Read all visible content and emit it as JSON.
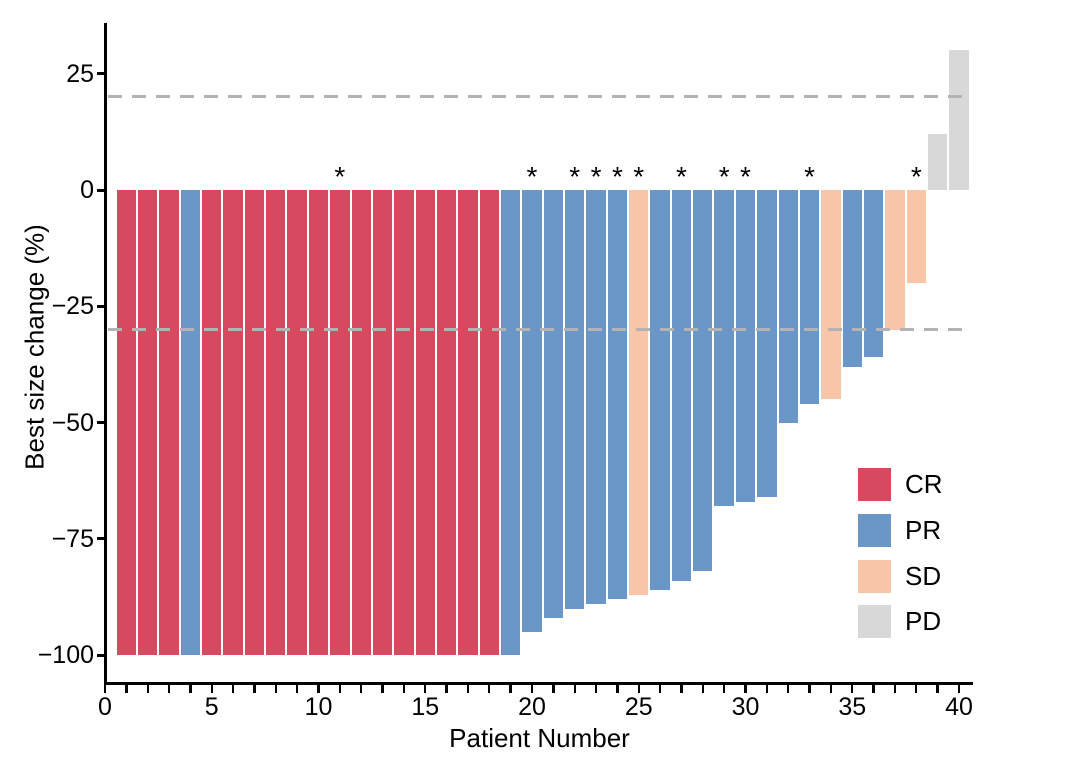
{
  "chart_data": {
    "type": "bar",
    "subtype": "waterfall-best-response",
    "title": "",
    "xlabel": "Patient Number",
    "ylabel": "Best size change (%)",
    "xlim": [
      0,
      40.7
    ],
    "ylim": [
      -107,
      38
    ],
    "grid": false,
    "x_ticks": [
      {
        "value": 0,
        "label": "0"
      },
      {
        "value": 5,
        "label": "5"
      },
      {
        "value": 10,
        "label": "10"
      },
      {
        "value": 15,
        "label": "15"
      },
      {
        "value": 20,
        "label": "20"
      },
      {
        "value": 25,
        "label": "25"
      },
      {
        "value": 30,
        "label": "30"
      },
      {
        "value": 35,
        "label": "35"
      },
      {
        "value": 40,
        "label": "40"
      }
    ],
    "x_minor_tick_interval": 1,
    "y_ticks": [
      {
        "value": 25,
        "label": "25"
      },
      {
        "value": 0,
        "label": "0"
      },
      {
        "value": -25,
        "label": "−25"
      },
      {
        "value": -50,
        "label": "−50"
      },
      {
        "value": -75,
        "label": "−75"
      },
      {
        "value": -100,
        "label": "−100"
      }
    ],
    "reference_lines": [
      {
        "y": 20,
        "style": "dashed",
        "color": "#b3b3b3"
      },
      {
        "y": -30,
        "style": "dashed",
        "color": "#b3b3b3"
      }
    ],
    "asterisk_symbol": "*",
    "response_colors": {
      "CR": "#d7495f",
      "PR": "#6b96c8",
      "SD": "#f8c5a9",
      "PD": "#d8d8d8"
    },
    "legend": {
      "position": "inside-right",
      "entries": [
        {
          "label": "CR",
          "color": "#d7495f"
        },
        {
          "label": "PR",
          "color": "#6b96c8"
        },
        {
          "label": "SD",
          "color": "#f8c5a9"
        },
        {
          "label": "PD",
          "color": "#d8d8d8"
        }
      ]
    },
    "patients": [
      {
        "patient": 1,
        "response": "CR",
        "value": -100,
        "asterisk": false
      },
      {
        "patient": 2,
        "response": "CR",
        "value": -100,
        "asterisk": false
      },
      {
        "patient": 3,
        "response": "CR",
        "value": -100,
        "asterisk": false
      },
      {
        "patient": 4,
        "response": "PR",
        "value": -100,
        "asterisk": false
      },
      {
        "patient": 5,
        "response": "CR",
        "value": -100,
        "asterisk": false
      },
      {
        "patient": 6,
        "response": "CR",
        "value": -100,
        "asterisk": false
      },
      {
        "patient": 7,
        "response": "CR",
        "value": -100,
        "asterisk": false
      },
      {
        "patient": 8,
        "response": "CR",
        "value": -100,
        "asterisk": false
      },
      {
        "patient": 9,
        "response": "CR",
        "value": -100,
        "asterisk": false
      },
      {
        "patient": 10,
        "response": "CR",
        "value": -100,
        "asterisk": false
      },
      {
        "patient": 11,
        "response": "CR",
        "value": -100,
        "asterisk": true
      },
      {
        "patient": 12,
        "response": "CR",
        "value": -100,
        "asterisk": false
      },
      {
        "patient": 13,
        "response": "CR",
        "value": -100,
        "asterisk": false
      },
      {
        "patient": 14,
        "response": "CR",
        "value": -100,
        "asterisk": false
      },
      {
        "patient": 15,
        "response": "CR",
        "value": -100,
        "asterisk": false
      },
      {
        "patient": 16,
        "response": "CR",
        "value": -100,
        "asterisk": false
      },
      {
        "patient": 17,
        "response": "CR",
        "value": -100,
        "asterisk": false
      },
      {
        "patient": 18,
        "response": "CR",
        "value": -100,
        "asterisk": false
      },
      {
        "patient": 19,
        "response": "PR",
        "value": -100,
        "asterisk": false
      },
      {
        "patient": 20,
        "response": "PR",
        "value": -95,
        "asterisk": true
      },
      {
        "patient": 21,
        "response": "PR",
        "value": -92,
        "asterisk": false
      },
      {
        "patient": 22,
        "response": "PR",
        "value": -90,
        "asterisk": true
      },
      {
        "patient": 23,
        "response": "PR",
        "value": -89,
        "asterisk": true
      },
      {
        "patient": 24,
        "response": "PR",
        "value": -88,
        "asterisk": true
      },
      {
        "patient": 25,
        "response": "SD",
        "value": -87,
        "asterisk": true
      },
      {
        "patient": 26,
        "response": "PR",
        "value": -86,
        "asterisk": false
      },
      {
        "patient": 27,
        "response": "PR",
        "value": -84,
        "asterisk": true
      },
      {
        "patient": 28,
        "response": "PR",
        "value": -82,
        "asterisk": false
      },
      {
        "patient": 29,
        "response": "PR",
        "value": -68,
        "asterisk": true
      },
      {
        "patient": 30,
        "response": "PR",
        "value": -67,
        "asterisk": true
      },
      {
        "patient": 31,
        "response": "PR",
        "value": -66,
        "asterisk": false
      },
      {
        "patient": 32,
        "response": "PR",
        "value": -50,
        "asterisk": false
      },
      {
        "patient": 33,
        "response": "PR",
        "value": -46,
        "asterisk": true
      },
      {
        "patient": 34,
        "response": "SD",
        "value": -45,
        "asterisk": false
      },
      {
        "patient": 35,
        "response": "PR",
        "value": -38,
        "asterisk": false
      },
      {
        "patient": 36,
        "response": "PR",
        "value": -36,
        "asterisk": false
      },
      {
        "patient": 37,
        "response": "SD",
        "value": -30,
        "asterisk": false
      },
      {
        "patient": 38,
        "response": "SD",
        "value": -20,
        "asterisk": true
      },
      {
        "patient": 39,
        "response": "PD",
        "value": 12,
        "asterisk": false
      },
      {
        "patient": 40,
        "response": "PD",
        "value": 30,
        "asterisk": false
      }
    ]
  }
}
